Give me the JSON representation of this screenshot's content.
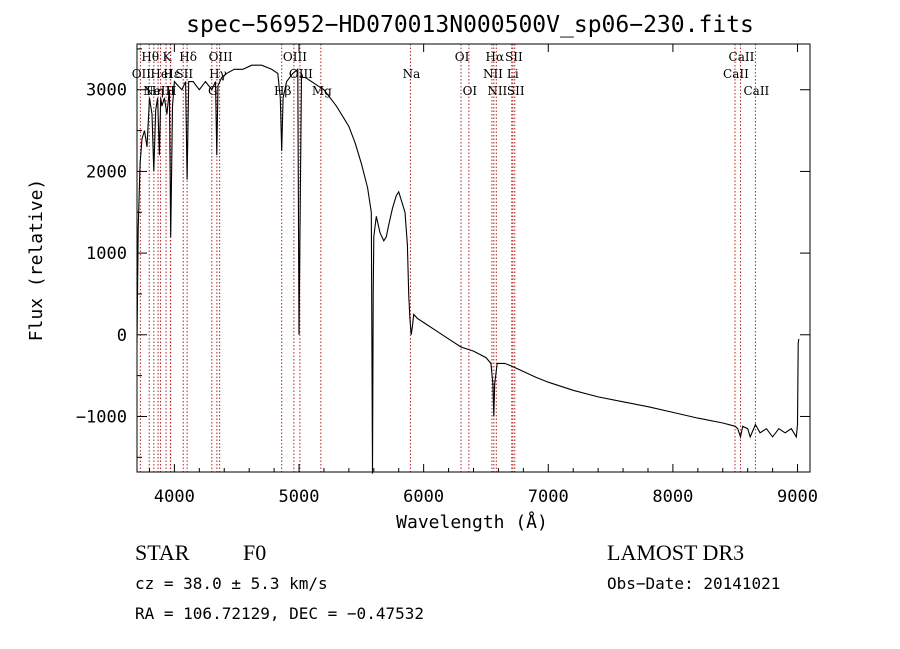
{
  "chart_data": {
    "type": "line",
    "title": "spec−56952−HD070013N000500V_sp06−230.fits",
    "xlabel": "Wavelength (Å)",
    "ylabel": "Flux (relative)",
    "xlim": [
      3700,
      9100
    ],
    "ylim": [
      -1680,
      3560
    ],
    "x_ticks": [
      {
        "value": 4000,
        "label": "4000"
      },
      {
        "value": 5000,
        "label": "5000"
      },
      {
        "value": 6000,
        "label": "6000"
      },
      {
        "value": 7000,
        "label": "7000"
      },
      {
        "value": 8000,
        "label": "8000"
      },
      {
        "value": 9000,
        "label": "9000"
      }
    ],
    "y_ticks": [
      {
        "value": 3000,
        "label": "3000"
      },
      {
        "value": 2000,
        "label": "2000"
      },
      {
        "value": 1000,
        "label": "1000"
      },
      {
        "value": 0,
        "label": "0"
      },
      {
        "value": -1000,
        "label": "−1000"
      }
    ],
    "series": [
      {
        "name": "flux",
        "color": "#000000",
        "x": [
          3700,
          3710,
          3725,
          3740,
          3760,
          3780,
          3800,
          3820,
          3835,
          3850,
          3865,
          3880,
          3890,
          3900,
          3920,
          3940,
          3960,
          3970,
          3985,
          4000,
          4030,
          4060,
          4090,
          4102,
          4115,
          4150,
          4200,
          4250,
          4300,
          4330,
          4340,
          4350,
          4380,
          4420,
          4480,
          4550,
          4620,
          4700,
          4780,
          4830,
          4850,
          4861,
          4872,
          4900,
          4950,
          4990,
          5000,
          5020,
          5030,
          5050,
          5100,
          5150,
          5200,
          5300,
          5400,
          5450,
          5500,
          5550,
          5580,
          5590,
          5595,
          5600,
          5620,
          5650,
          5680,
          5700,
          5720,
          5750,
          5780,
          5800,
          5830,
          5850,
          5870,
          5880,
          5890,
          5900,
          5910,
          5920,
          5950,
          6000,
          6100,
          6200,
          6300,
          6400,
          6500,
          6540,
          6556,
          6563,
          6570,
          6590,
          6650,
          6700,
          6800,
          6900,
          7000,
          7200,
          7400,
          7600,
          7800,
          8000,
          8200,
          8400,
          8500,
          8520,
          8542,
          8560,
          8600,
          8620,
          8662,
          8700,
          8750,
          8800,
          8850,
          8900,
          8950,
          8990,
          9000,
          9005,
          9010
        ],
        "values": [
          -100,
          1300,
          2100,
          2400,
          2500,
          2300,
          2900,
          2700,
          2000,
          2750,
          2900,
          2200,
          2900,
          2800,
          2900,
          2700,
          3000,
          1200,
          2800,
          3100,
          3050,
          3000,
          3100,
          1900,
          3100,
          3100,
          3000,
          3100,
          3000,
          3100,
          2200,
          3050,
          3150,
          3200,
          3250,
          3250,
          3300,
          3300,
          3250,
          3200,
          2900,
          2250,
          2900,
          3100,
          3200,
          3250,
          0,
          3200,
          3150,
          3150,
          3100,
          3050,
          3000,
          2800,
          2550,
          2350,
          2100,
          1800,
          1500,
          -1700,
          500,
          1200,
          1450,
          1250,
          1150,
          1200,
          1350,
          1550,
          1700,
          1750,
          1600,
          1500,
          1100,
          500,
          200,
          0,
          100,
          250,
          200,
          150,
          50,
          -50,
          -150,
          -200,
          -280,
          -350,
          -600,
          -1000,
          -600,
          -350,
          -350,
          -380,
          -450,
          -520,
          -580,
          -680,
          -760,
          -820,
          -880,
          -950,
          -1020,
          -1080,
          -1120,
          -1150,
          -1250,
          -1120,
          -1150,
          -1250,
          -1100,
          -1200,
          -1150,
          -1250,
          -1150,
          -1200,
          -1150,
          -1250,
          -1100,
          -100,
          -50
        ]
      }
    ],
    "lines": [
      {
        "wavelength": 3727,
        "label": "OII",
        "row": 1
      },
      {
        "wavelength": 3798,
        "label": "Hθ",
        "row": 0
      },
      {
        "wavelength": 3835,
        "label": "Hη",
        "row": 2
      },
      {
        "wavelength": 3869,
        "label": "NeIII",
        "row": 2
      },
      {
        "wavelength": 3889,
        "label": "HeI",
        "row": 1
      },
      {
        "wavelength": 3933,
        "label": "K",
        "row": 0
      },
      {
        "wavelength": 3968,
        "label": "H",
        "row": 2
      },
      {
        "wavelength": 3970,
        "label": "Hε",
        "row": 1
      },
      {
        "wavelength": 4071,
        "label": "SII",
        "row": 1
      },
      {
        "wavelength": 4102,
        "label": "Hδ",
        "row": 0
      },
      {
        "wavelength": 4300,
        "label": "G",
        "row": 2
      },
      {
        "wavelength": 4341,
        "label": "Hγ",
        "row": 1
      },
      {
        "wavelength": 4363,
        "label": "OIII",
        "row": 0
      },
      {
        "wavelength": 4861,
        "label": "Hβ",
        "row": 2
      },
      {
        "wavelength": 4959,
        "label": "OIII",
        "row": 0
      },
      {
        "wavelength": 5007,
        "label": "OIII",
        "row": 1
      },
      {
        "wavelength": 5175,
        "label": "Mg",
        "row": 2
      },
      {
        "wavelength": 5894,
        "label": "Na",
        "row": 1
      },
      {
        "wavelength": 6300,
        "label": "OI",
        "row": 0
      },
      {
        "wavelength": 6363,
        "label": "OI",
        "row": 2
      },
      {
        "wavelength": 6548,
        "label": "NII",
        "row": 1
      },
      {
        "wavelength": 6563,
        "label": "Hα",
        "row": 0
      },
      {
        "wavelength": 6583,
        "label": "NII",
        "row": 2
      },
      {
        "wavelength": 6707,
        "label": "Li",
        "row": 1
      },
      {
        "wavelength": 6716,
        "label": "SII",
        "row": 0
      },
      {
        "wavelength": 6731,
        "label": "SII",
        "row": 2
      },
      {
        "wavelength": 8498,
        "label": "CaII",
        "row": 1
      },
      {
        "wavelength": 8542,
        "label": "CaII",
        "row": 0
      },
      {
        "wavelength": 8662,
        "label": "CaII",
        "row": 2
      }
    ],
    "line_color": "#b22222"
  },
  "info": {
    "object_class": "STAR",
    "subclass": "F0",
    "survey": "LAMOST DR3",
    "cz": "cz = 38.0 ± 5.3 km/s",
    "obs_date": "Obs−Date: 20141021",
    "radec": "RA = 106.72129, DEC =  −0.47532"
  }
}
